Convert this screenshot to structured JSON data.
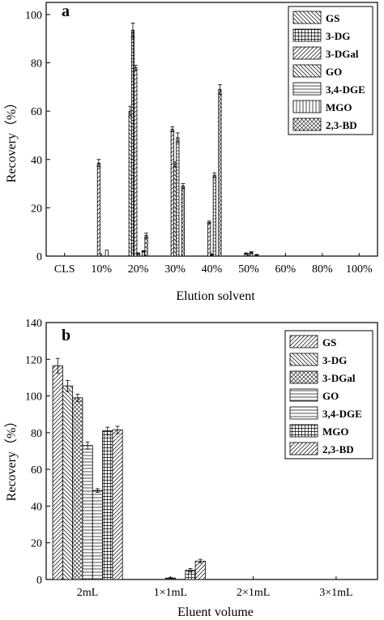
{
  "chart_data": [
    {
      "type": "bar",
      "panel_label": "a",
      "xlabel": "Elution solvent",
      "ylabel": "Recovery（%）",
      "ylim": [
        0,
        105
      ],
      "yticks": [
        0,
        20,
        40,
        60,
        80,
        100
      ],
      "categories": [
        "CLS",
        "10%",
        "20%",
        "30%",
        "40%",
        "50%",
        "60%",
        "80%",
        "100%"
      ],
      "legend_position": "top-right",
      "series": [
        {
          "name": "GS",
          "pattern": "diag-left",
          "values": [
            0,
            0,
            60,
            0,
            0,
            0,
            0,
            0,
            0
          ],
          "errors": [
            0,
            0,
            2,
            0,
            0,
            0,
            0,
            0,
            0
          ]
        },
        {
          "name": "3-DG",
          "pattern": "grid",
          "values": [
            0,
            0,
            93.5,
            0,
            0,
            0,
            0,
            0,
            0
          ],
          "errors": [
            0,
            0,
            3,
            0,
            0,
            0,
            0,
            0,
            0
          ]
        },
        {
          "name": "3-DGal",
          "pattern": "diag-right",
          "values": [
            0,
            38.5,
            78,
            52.5,
            14,
            1,
            0,
            0,
            0
          ],
          "errors": [
            0,
            1.5,
            1,
            1,
            0.5,
            0.3,
            0,
            0,
            0
          ]
        },
        {
          "name": "GO",
          "pattern": "diag-left",
          "values": [
            0,
            0,
            1,
            38,
            0.5,
            0,
            0,
            0,
            0
          ],
          "errors": [
            0,
            0,
            0.3,
            1,
            0.2,
            0,
            0,
            0,
            0
          ]
        },
        {
          "name": "3,4-DGE",
          "pattern": "horiz",
          "values": [
            0,
            0,
            0,
            49,
            33.5,
            1.5,
            0,
            0,
            0
          ],
          "errors": [
            0,
            0,
            0,
            2,
            1,
            0.3,
            0,
            0,
            0
          ]
        },
        {
          "name": "MGO",
          "pattern": "vert",
          "values": [
            0,
            2.5,
            2,
            0,
            0,
            0,
            0,
            0,
            0
          ],
          "errors": [
            0,
            0,
            0.3,
            0,
            0,
            0,
            0,
            0,
            0
          ]
        },
        {
          "name": "2,3-BD",
          "pattern": "cross",
          "values": [
            0,
            0,
            8.5,
            29,
            69,
            0.5,
            0,
            0,
            0
          ],
          "errors": [
            0,
            0,
            1,
            1,
            2,
            0.2,
            0,
            0,
            0
          ]
        }
      ]
    },
    {
      "type": "bar",
      "panel_label": "b",
      "xlabel": "Eluent volume",
      "ylabel": "Recovery（%）",
      "ylim": [
        0,
        140
      ],
      "yticks": [
        0,
        20,
        40,
        60,
        80,
        100,
        120,
        140
      ],
      "categories": [
        "2mL",
        "1×1mL",
        "2×1mL",
        "3×1mL"
      ],
      "legend_position": "top-right",
      "series": [
        {
          "name": "GS",
          "pattern": "diag-right",
          "values": [
            116.5,
            0,
            0,
            0
          ],
          "errors": [
            4,
            0,
            0,
            0
          ]
        },
        {
          "name": "3-DG",
          "pattern": "diag-left",
          "values": [
            105.5,
            0,
            0,
            0
          ],
          "errors": [
            3,
            0,
            0,
            0
          ]
        },
        {
          "name": "3-DGal",
          "pattern": "cross",
          "values": [
            99,
            0,
            0,
            0
          ],
          "errors": [
            2,
            0,
            0,
            0
          ]
        },
        {
          "name": "GO",
          "pattern": "horiz",
          "values": [
            73,
            0.8,
            0,
            0
          ],
          "errors": [
            2,
            0.2,
            0,
            0
          ]
        },
        {
          "name": "3,4-DGE",
          "pattern": "horiz",
          "values": [
            48.5,
            0,
            0,
            0
          ],
          "errors": [
            1,
            0,
            0,
            0
          ]
        },
        {
          "name": "MGO",
          "pattern": "grid",
          "values": [
            81,
            5,
            0,
            0
          ],
          "errors": [
            2,
            1,
            0,
            0
          ]
        },
        {
          "name": "2,3-BD",
          "pattern": "diag-right",
          "values": [
            81.5,
            10,
            0,
            0
          ],
          "errors": [
            2,
            1,
            0,
            0
          ]
        }
      ]
    }
  ]
}
